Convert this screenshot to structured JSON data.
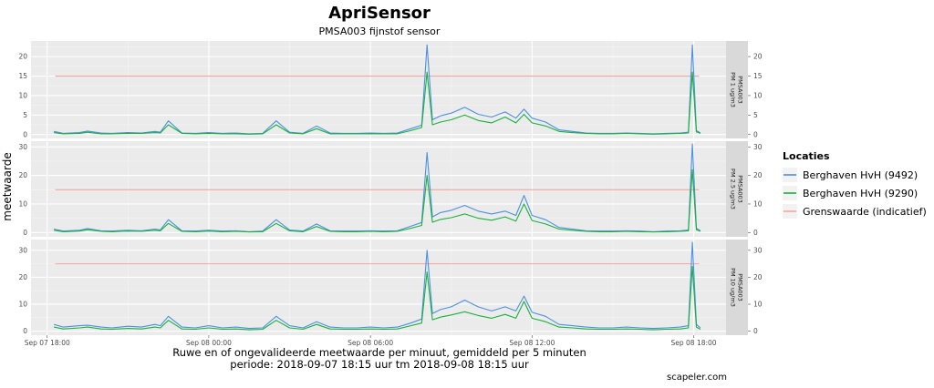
{
  "chart_data": {
    "type": "line",
    "title": "ApriSensor",
    "subtitle": "PMSA003 fijnstof sensor",
    "ylabel": "meetwaarde",
    "caption_line1": "Ruwe en of ongevalideerde meetwaarde per minuut, gemiddeld per 5 minuten",
    "caption_line2": "periode: 2018-09-07 18:15 uur tm 2018-09-08 18:15 uur",
    "credit": "scapeler.com",
    "x_ticks": [
      "Sep 07 18:00",
      "Sep 08 00:00",
      "Sep 08 06:00",
      "Sep 08 12:00",
      "Sep 08 18:00"
    ],
    "x_tick_hours": [
      0,
      6,
      12,
      18,
      24
    ],
    "x_range_hours": [
      -0.6,
      25.2
    ],
    "legend": {
      "title": "Locaties",
      "placement": "right",
      "items": [
        {
          "label": "Berghaven HvH (9492)",
          "color": "#4a90e2"
        },
        {
          "label": "Berghaven HvH (9290)",
          "color": "#1ab03c"
        },
        {
          "label": "Grenswaarde (indicatief)",
          "color": "#f4a4a0"
        }
      ]
    },
    "panels": [
      {
        "strip": [
          "PMSA003",
          "PM 1 ug/m3"
        ],
        "ylim": [
          -1,
          24
        ],
        "yticks": [
          "0",
          "5",
          "10",
          "15",
          "20"
        ],
        "ytick_values": [
          0,
          5,
          10,
          15,
          20
        ],
        "threshold": 15,
        "series": [
          {
            "name": "Berghaven HvH (9492)",
            "x": [
              0.25,
              0.6,
              1.2,
              1.5,
              2,
              2.4,
              3,
              3.5,
              4,
              4.2,
              4.5,
              5,
              5.5,
              6,
              6.5,
              7,
              7.5,
              8,
              8.5,
              9,
              9.5,
              10,
              10.5,
              11,
              11.5,
              12,
              12.5,
              13,
              13.5,
              13.9,
              14.1,
              14.3,
              14.6,
              15,
              15.5,
              16,
              16.5,
              17,
              17.4,
              17.7,
              18,
              18.5,
              19,
              19.5,
              20,
              20.5,
              21,
              21.5,
              22,
              22.5,
              23,
              23.5,
              23.8,
              23.95,
              24.1,
              24.25
            ],
            "y": [
              0.8,
              0.3,
              0.5,
              0.9,
              0.4,
              0.3,
              0.5,
              0.4,
              0.8,
              0.6,
              3.5,
              0.4,
              0.3,
              0.5,
              0.3,
              0.4,
              0.2,
              0.3,
              3.5,
              0.6,
              0.3,
              2.2,
              0.4,
              0.3,
              0.3,
              0.4,
              0.3,
              0.4,
              1.5,
              2.4,
              23,
              3.8,
              4.8,
              5.5,
              7,
              5.2,
              4.5,
              5.8,
              4.2,
              6.5,
              4.2,
              3.2,
              1.2,
              0.8,
              0.4,
              0.3,
              0.3,
              0.4,
              0.3,
              0.2,
              0.3,
              0.4,
              0.6,
              23,
              1.0,
              0.4
            ]
          },
          {
            "name": "Berghaven HvH (9290)",
            "x": [
              0.25,
              0.6,
              1.2,
              1.5,
              2,
              2.4,
              3,
              3.5,
              4,
              4.2,
              4.5,
              5,
              5.5,
              6,
              6.5,
              7,
              7.5,
              8,
              8.5,
              9,
              9.5,
              10,
              10.5,
              11,
              11.5,
              12,
              12.5,
              13,
              13.5,
              13.9,
              14.1,
              14.3,
              14.6,
              15,
              15.5,
              16,
              16.5,
              17,
              17.4,
              17.7,
              18,
              18.5,
              19,
              19.5,
              20,
              20.5,
              21,
              21.5,
              22,
              22.5,
              23,
              23.5,
              23.8,
              23.95,
              24.1,
              24.25
            ],
            "y": [
              0.5,
              0.2,
              0.3,
              0.6,
              0.2,
              0.2,
              0.3,
              0.3,
              0.5,
              0.4,
              2.5,
              0.3,
              0.2,
              0.3,
              0.2,
              0.2,
              0.1,
              0.2,
              2.5,
              0.4,
              0.2,
              1.5,
              0.2,
              0.2,
              0.2,
              0.2,
              0.2,
              0.2,
              1.0,
              1.8,
              16,
              2.5,
              3.2,
              3.8,
              5,
              3.6,
              3.0,
              4.5,
              3.0,
              5.2,
              3.0,
              2.2,
              0.8,
              0.5,
              0.3,
              0.2,
              0.2,
              0.3,
              0.2,
              0.1,
              0.2,
              0.3,
              0.4,
              16,
              0.7,
              0.3
            ]
          }
        ]
      },
      {
        "strip": [
          "PMSA003",
          "PM 2.5 ug/m3"
        ],
        "ylim": [
          -1.5,
          32
        ],
        "yticks": [
          "0",
          "10",
          "20",
          "30"
        ],
        "ytick_values": [
          0,
          10,
          20,
          30
        ],
        "threshold": 15,
        "series": [
          {
            "name": "Berghaven HvH (9492)",
            "x": [
              0.25,
              0.6,
              1.2,
              1.5,
              2,
              2.4,
              3,
              3.5,
              4,
              4.2,
              4.5,
              5,
              5.5,
              6,
              6.5,
              7,
              7.5,
              8,
              8.5,
              9,
              9.5,
              10,
              10.5,
              11,
              11.5,
              12,
              12.5,
              13,
              13.5,
              13.9,
              14.1,
              14.3,
              14.6,
              15,
              15.5,
              16,
              16.5,
              17,
              17.4,
              17.7,
              18,
              18.5,
              19,
              19.5,
              20,
              20.5,
              21,
              21.5,
              22,
              22.5,
              23,
              23.5,
              23.8,
              23.95,
              24.1,
              24.25
            ],
            "y": [
              1.2,
              0.5,
              0.8,
              1.4,
              0.6,
              0.5,
              0.8,
              0.6,
              1.2,
              0.9,
              4.5,
              0.6,
              0.5,
              0.8,
              0.5,
              0.6,
              0.3,
              0.5,
              4.5,
              0.9,
              0.5,
              3.0,
              0.6,
              0.5,
              0.5,
              0.6,
              0.5,
              0.6,
              2.2,
              3.5,
              28,
              5.5,
              7.0,
              7.8,
              9.5,
              7.5,
              6.5,
              7.5,
              6.0,
              13,
              6.0,
              4.5,
              1.8,
              1.2,
              0.6,
              0.5,
              0.5,
              0.6,
              0.5,
              0.3,
              0.5,
              0.6,
              0.9,
              31,
              1.5,
              0.6
            ]
          },
          {
            "name": "Berghaven HvH (9290)",
            "x": [
              0.25,
              0.6,
              1.2,
              1.5,
              2,
              2.4,
              3,
              3.5,
              4,
              4.2,
              4.5,
              5,
              5.5,
              6,
              6.5,
              7,
              7.5,
              8,
              8.5,
              9,
              9.5,
              10,
              10.5,
              11,
              11.5,
              12,
              12.5,
              13,
              13.5,
              13.9,
              14.1,
              14.3,
              14.6,
              15,
              15.5,
              16,
              16.5,
              17,
              17.4,
              17.7,
              18,
              18.5,
              19,
              19.5,
              20,
              20.5,
              21,
              21.5,
              22,
              22.5,
              23,
              23.5,
              23.8,
              23.95,
              24.1,
              24.25
            ],
            "y": [
              0.8,
              0.3,
              0.5,
              1.0,
              0.4,
              0.3,
              0.5,
              0.4,
              0.8,
              0.6,
              3.2,
              0.4,
              0.3,
              0.5,
              0.3,
              0.4,
              0.2,
              0.3,
              3.2,
              0.6,
              0.3,
              2.1,
              0.4,
              0.3,
              0.3,
              0.4,
              0.3,
              0.4,
              1.5,
              2.5,
              20,
              3.6,
              4.6,
              5.2,
              6.5,
              5.0,
              4.3,
              5.5,
              4.0,
              10,
              4.2,
              3.0,
              1.2,
              0.8,
              0.4,
              0.3,
              0.3,
              0.4,
              0.3,
              0.2,
              0.3,
              0.4,
              0.6,
              22,
              1.0,
              0.4
            ]
          }
        ]
      },
      {
        "strip": [
          "PMSA003",
          "PM 10 ug/m3"
        ],
        "ylim": [
          -1.5,
          34
        ],
        "yticks": [
          "0",
          "10",
          "20",
          "30"
        ],
        "ytick_values": [
          0,
          10,
          20,
          30
        ],
        "threshold": 25,
        "series": [
          {
            "name": "Berghaven HvH (9492)",
            "x": [
              0.25,
              0.6,
              1.2,
              1.5,
              2,
              2.4,
              3,
              3.5,
              4,
              4.2,
              4.5,
              5,
              5.5,
              6,
              6.5,
              7,
              7.5,
              8,
              8.5,
              9,
              9.5,
              10,
              10.5,
              11,
              11.5,
              12,
              12.5,
              13,
              13.5,
              13.9,
              14.1,
              14.3,
              14.6,
              15,
              15.5,
              16,
              16.5,
              17,
              17.4,
              17.7,
              18,
              18.5,
              19,
              19.5,
              20,
              20.5,
              21,
              21.5,
              22,
              22.5,
              23,
              23.5,
              23.8,
              23.95,
              24.1,
              24.25
            ],
            "y": [
              2.5,
              1.5,
              2.0,
              2.2,
              1.5,
              1.2,
              1.8,
              1.5,
              2.5,
              2.0,
              5.5,
              1.5,
              1.2,
              2.0,
              1.2,
              1.5,
              1.0,
              1.2,
              5.5,
              2.0,
              1.2,
              3.5,
              1.5,
              1.2,
              1.2,
              1.5,
              1.2,
              1.5,
              3.0,
              4.5,
              30,
              6.5,
              8.0,
              9.0,
              11.5,
              9.0,
              7.5,
              9.0,
              7.5,
              13,
              7.0,
              5.5,
              2.5,
              2.0,
              1.5,
              1.2,
              1.2,
              1.5,
              1.2,
              1.0,
              1.2,
              1.5,
              2.0,
              33,
              2.5,
              1.2
            ]
          },
          {
            "name": "Berghaven HvH (9290)",
            "x": [
              0.25,
              0.6,
              1.2,
              1.5,
              2,
              2.4,
              3,
              3.5,
              4,
              4.2,
              4.5,
              5,
              5.5,
              6,
              6.5,
              7,
              7.5,
              8,
              8.5,
              9,
              9.5,
              10,
              10.5,
              11,
              11.5,
              12,
              12.5,
              13,
              13.5,
              13.9,
              14.1,
              14.3,
              14.6,
              15,
              15.5,
              16,
              16.5,
              17,
              17.4,
              17.7,
              18,
              18.5,
              19,
              19.5,
              20,
              20.5,
              21,
              21.5,
              22,
              22.5,
              23,
              23.5,
              23.8,
              23.95,
              24.1,
              24.25
            ],
            "y": [
              1.5,
              0.8,
              1.2,
              1.5,
              0.8,
              0.7,
              1.0,
              0.8,
              1.5,
              1.2,
              4.0,
              0.8,
              0.7,
              1.2,
              0.7,
              0.8,
              0.5,
              0.7,
              4.0,
              1.2,
              0.7,
              2.5,
              0.8,
              0.7,
              0.7,
              0.8,
              0.7,
              0.8,
              2.0,
              3.0,
              22,
              4.2,
              5.2,
              6.0,
              7.2,
              5.8,
              4.8,
              6.2,
              4.8,
              11,
              4.8,
              3.5,
              1.5,
              1.2,
              0.8,
              0.7,
              0.7,
              0.8,
              0.7,
              0.5,
              0.7,
              0.8,
              1.2,
              24,
              1.5,
              0.7
            ]
          }
        ]
      }
    ]
  }
}
